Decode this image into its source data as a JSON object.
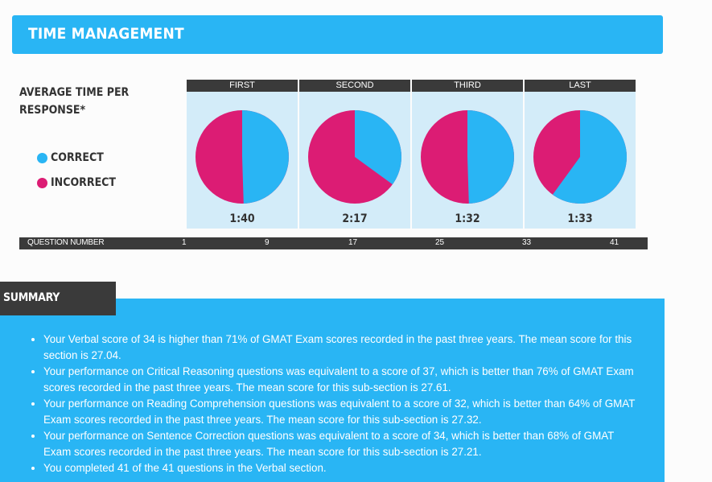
{
  "header": {
    "title": "TIME MANAGEMENT"
  },
  "avg_time": {
    "label_line1": "AVERAGE TIME PER",
    "label_line2": "RESPONSE*"
  },
  "legend": [
    {
      "label": "CORRECT",
      "color": "#29b5f4"
    },
    {
      "label": "INCORRECT",
      "color": "#dc1c74"
    }
  ],
  "panels": [
    {
      "title": "FIRST",
      "time": "1:40",
      "correct_fraction": 0.495
    },
    {
      "title": "SECOND",
      "time": "2:17",
      "correct_fraction": 0.35
    },
    {
      "title": "THIRD",
      "time": "1:32",
      "correct_fraction": 0.495
    },
    {
      "title": "LAST",
      "time": "1:33",
      "correct_fraction": 0.6
    }
  ],
  "question_bar": {
    "label": "QUESTION NUMBER",
    "numbers": [
      "1",
      "9",
      "17",
      "25",
      "33",
      "41"
    ]
  },
  "summary": {
    "tab_label": "SUMMARY",
    "items": [
      "Your Verbal score of 34 is higher than 71% of GMAT Exam scores recorded in the past three years. The mean score for this section is 27.04.",
      "Your performance on Critical Reasoning questions was equivalent to a score of 37, which is better than 76% of GMAT Exam scores recorded in the past three years. The mean score for this sub-section is 27.61.",
      "Your performance on Reading Comprehension questions was equivalent to a score of 32, which is better than 64% of GMAT Exam scores recorded in the past three years. The mean score for this sub-section is 27.32.",
      "Your performance on Sentence Correction questions was equivalent to a score of 34, which is better than 68% of GMAT Exam scores recorded in the past three years. The mean score for this sub-section is 27.21.",
      "You completed 41 of the 41 questions in the Verbal section."
    ]
  }
}
